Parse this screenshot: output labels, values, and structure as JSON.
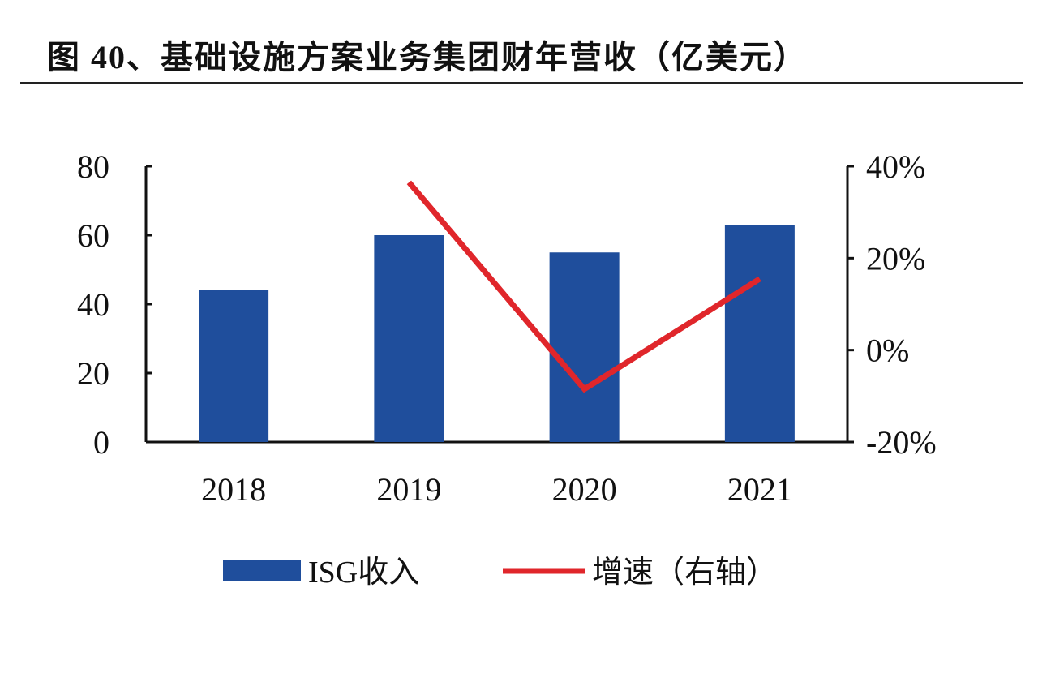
{
  "title": "图 40、基础设施方案业务集团财年营收（亿美元）",
  "chart_data": {
    "type": "bar+line",
    "title": "图 40、基础设施方案业务集团财年营收（亿美元）",
    "categories": [
      "2018",
      "2019",
      "2020",
      "2021"
    ],
    "series": [
      {
        "name": "ISG收入",
        "type": "bar",
        "axis": "left",
        "color": "#1F4E9C",
        "values": [
          44,
          60,
          55,
          63
        ]
      },
      {
        "name": "增速（右轴）",
        "type": "line",
        "axis": "right",
        "color": "#E0262B",
        "values": [
          null,
          36.5,
          -8.5,
          15.5
        ]
      }
    ],
    "left_axis": {
      "ylim": [
        0,
        80
      ],
      "ticks": [
        "0",
        "20",
        "40",
        "60",
        "80"
      ]
    },
    "right_axis": {
      "ylim": [
        -20,
        40
      ],
      "ticks": [
        "-20%",
        "0%",
        "20%",
        "40%"
      ]
    },
    "grid": false,
    "legend": "bottom"
  }
}
